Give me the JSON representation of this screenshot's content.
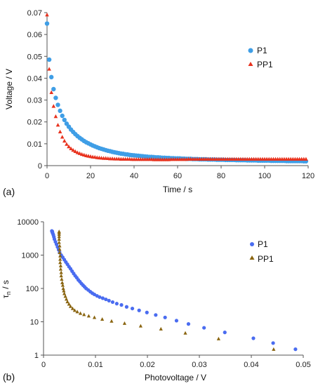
{
  "chart_data": [
    {
      "type": "scatter",
      "panel_label": "(a)",
      "xlabel": "Time / s",
      "ylabel": "Voltage / V",
      "xlim": [
        0,
        120
      ],
      "ylim": [
        0,
        0.07
      ],
      "xticks": [
        "0",
        "20",
        "40",
        "60",
        "80",
        "100",
        "120"
      ],
      "yticks": [
        "0",
        "0.01",
        "0.02",
        "0.03",
        "0.04",
        "0.05",
        "0.06",
        "0.07"
      ],
      "legend_position": "right",
      "series": [
        {
          "name": "P1",
          "marker": "circle",
          "color": "#3f9ee6",
          "x": [
            0,
            1,
            2,
            3,
            4,
            5,
            6,
            7,
            8,
            9,
            10,
            11,
            12,
            13,
            14,
            15,
            16,
            17,
            18,
            19,
            20,
            21,
            22,
            23,
            24,
            25,
            26,
            27,
            28,
            29,
            30,
            31,
            32,
            33,
            34,
            35,
            36,
            37,
            38,
            39,
            40,
            41,
            42,
            43,
            44,
            45,
            46,
            47,
            48,
            49,
            50,
            51,
            52,
            53,
            54,
            55,
            56,
            57,
            58,
            59,
            60,
            61,
            62,
            63,
            64,
            65,
            66,
            67,
            68,
            69,
            70,
            71,
            72,
            73,
            74,
            75,
            76,
            77,
            78,
            79,
            80,
            81,
            82,
            83,
            84,
            85,
            86,
            87,
            88,
            89,
            90,
            91,
            92,
            93,
            94,
            95,
            96,
            97,
            98,
            99,
            100,
            101,
            102,
            103,
            104,
            105,
            106,
            107,
            108,
            109,
            110,
            111,
            112,
            113,
            114,
            115,
            116,
            117,
            118,
            119
          ],
          "y": [
            0.065,
            0.0485,
            0.0405,
            0.035,
            0.031,
            0.0278,
            0.0251,
            0.0228,
            0.0209,
            0.0192,
            0.0178,
            0.0165,
            0.0154,
            0.0144,
            0.0135,
            0.0127,
            0.012,
            0.0113,
            0.0107,
            0.0102,
            0.0097,
            0.0092,
            0.0088,
            0.0084,
            0.008,
            0.0077,
            0.0074,
            0.0071,
            0.0068,
            0.0066,
            0.0063,
            0.0061,
            0.0059,
            0.0057,
            0.0055,
            0.0054,
            0.0052,
            0.0051,
            0.0049,
            0.0048,
            0.0047,
            0.0046,
            0.0045,
            0.0044,
            0.0043,
            0.0042,
            0.0041,
            0.004,
            0.004,
            0.0039,
            0.0038,
            0.0038,
            0.0037,
            0.0036,
            0.0036,
            0.0035,
            0.0035,
            0.0034,
            0.0034,
            0.0033,
            0.0033,
            0.0033,
            0.0032,
            0.0032,
            0.0031,
            0.0031,
            0.0031,
            0.003,
            0.003,
            0.003,
            0.0029,
            0.0029,
            0.0029,
            0.0029,
            0.0028,
            0.0028,
            0.0028,
            0.0028,
            0.0027,
            0.0027,
            0.0027,
            0.0027,
            0.0026,
            0.0026,
            0.0026,
            0.0026,
            0.0026,
            0.0025,
            0.0025,
            0.0025,
            0.0025,
            0.0025,
            0.0024,
            0.0024,
            0.0024,
            0.0024,
            0.0024,
            0.0023,
            0.0023,
            0.0023,
            0.0023,
            0.0023,
            0.0023,
            0.0022,
            0.0022,
            0.0022,
            0.0022,
            0.0022,
            0.0022,
            0.0022,
            0.0021,
            0.0021,
            0.0021,
            0.0021,
            0.0021,
            0.0021,
            0.0021,
            0.0021,
            0.002,
            0.002
          ]
        },
        {
          "name": "PP1",
          "marker": "triangle",
          "color": "#e8321e",
          "x": [
            0,
            1,
            2,
            3,
            4,
            5,
            6,
            7,
            8,
            9,
            10,
            11,
            12,
            13,
            14,
            15,
            16,
            17,
            18,
            19,
            20,
            21,
            22,
            23,
            24,
            25,
            26,
            27,
            28,
            29,
            30,
            31,
            32,
            33,
            34,
            35,
            36,
            37,
            38,
            39,
            40,
            41,
            42,
            43,
            44,
            45,
            46,
            47,
            48,
            49,
            50,
            51,
            52,
            53,
            54,
            55,
            56,
            57,
            58,
            59,
            60,
            61,
            62,
            63,
            64,
            65,
            66,
            67,
            68,
            69,
            70,
            71,
            72,
            73,
            74,
            75,
            76,
            77,
            78,
            79,
            80,
            81,
            82,
            83,
            84,
            85,
            86,
            87,
            88,
            89,
            90,
            91,
            92,
            93,
            94,
            95,
            96,
            97,
            98,
            99,
            100,
            101,
            102,
            103,
            104,
            105,
            106,
            107,
            108,
            109,
            110,
            111,
            112,
            113,
            114,
            115,
            116,
            117,
            118,
            119
          ],
          "y": [
            0.069,
            0.0442,
            0.0335,
            0.0272,
            0.0225,
            0.0186,
            0.0155,
            0.0131,
            0.0113,
            0.0098,
            0.0087,
            0.0078,
            0.0071,
            0.0065,
            0.006,
            0.0056,
            0.0052,
            0.0049,
            0.0046,
            0.0044,
            0.0042,
            0.004,
            0.0039,
            0.0037,
            0.0036,
            0.0035,
            0.0034,
            0.0034,
            0.0033,
            0.0032,
            0.0032,
            0.0031,
            0.0031,
            0.0031,
            0.003,
            0.003,
            0.003,
            0.003,
            0.003,
            0.0029,
            0.0029,
            0.0029,
            0.0029,
            0.0029,
            0.0029,
            0.0029,
            0.0029,
            0.0029,
            0.0029,
            0.0028,
            0.0028,
            0.0028,
            0.0028,
            0.0028,
            0.0028,
            0.0028,
            0.0028,
            0.0029,
            0.0029,
            0.0029,
            0.0029,
            0.0029,
            0.0029,
            0.0029,
            0.0029,
            0.003,
            0.003,
            0.003,
            0.003,
            0.003,
            0.003,
            0.003,
            0.003,
            0.003,
            0.003,
            0.003,
            0.003,
            0.003,
            0.003,
            0.003,
            0.003,
            0.003,
            0.003,
            0.003,
            0.003,
            0.003,
            0.003,
            0.003,
            0.003,
            0.003,
            0.003,
            0.003,
            0.003,
            0.003,
            0.003,
            0.003,
            0.003,
            0.003,
            0.003,
            0.003,
            0.003,
            0.003,
            0.003,
            0.003,
            0.003,
            0.003,
            0.003,
            0.003,
            0.003,
            0.003,
            0.003,
            0.003,
            0.003,
            0.003,
            0.003,
            0.003,
            0.003,
            0.003,
            0.003,
            0.003
          ]
        }
      ]
    },
    {
      "type": "scatter",
      "panel_label": "(b)",
      "xlabel": "Photovoltage / V",
      "ylabel": "τn / s",
      "ylabel_main": "τ",
      "ylabel_sub": "n",
      "ylabel_tail": " / s",
      "xlim": [
        0,
        0.05
      ],
      "ylim": [
        1,
        10000
      ],
      "yscale": "log",
      "xticks": [
        "0",
        "0.01",
        "0.02",
        "0.03",
        "0.04",
        "0.05"
      ],
      "yticks": [
        "1",
        "10",
        "100",
        "1000",
        "10000"
      ],
      "legend_position": "right",
      "series": [
        {
          "name": "P1",
          "marker": "circle",
          "color": "#4a6cf0",
          "x": [
            0.0485,
            0.0442,
            0.0404,
            0.0349,
            0.0309,
            0.0279,
            0.0256,
            0.0234,
            0.0216,
            0.0199,
            0.0184,
            0.0171,
            0.016,
            0.015,
            0.0141,
            0.0133,
            0.0126,
            0.012,
            0.0114,
            0.0108,
            0.0103,
            0.0098,
            0.0094,
            0.009,
            0.0086,
            0.0082,
            0.0079,
            0.0076,
            0.0073,
            0.007,
            0.0067,
            0.0064,
            0.0061,
            0.0058,
            0.0055,
            0.0052,
            0.0049,
            0.0046,
            0.0043,
            0.004,
            0.0037,
            0.0034,
            0.0031,
            0.0029,
            0.0027,
            0.0025,
            0.0023,
            0.0021,
            0.002,
            0.0019,
            0.0018,
            0.0017,
            0.0017,
            0.0016
          ],
          "y": [
            1.5,
            2.3,
            3.2,
            4.8,
            6.6,
            8.6,
            10.8,
            13.5,
            16,
            19,
            22,
            25,
            28,
            32,
            35,
            39,
            43,
            47,
            51,
            55,
            60,
            66,
            72,
            80,
            90,
            100,
            112,
            125,
            140,
            160,
            180,
            210,
            240,
            280,
            330,
            390,
            450,
            530,
            620,
            730,
            860,
            1000,
            1200,
            1450,
            1750,
            2100,
            2500,
            3000,
            3500,
            4000,
            4400,
            4800,
            5100,
            5300
          ]
        },
        {
          "name": "PP1",
          "marker": "triangle",
          "color": "#8a6510",
          "x": [
            0.0443,
            0.0337,
            0.0273,
            0.0226,
            0.0187,
            0.0156,
            0.0131,
            0.0113,
            0.0098,
            0.0087,
            0.0078,
            0.0071,
            0.0065,
            0.006,
            0.0056,
            0.0052,
            0.0049,
            0.0046,
            0.0044,
            0.0042,
            0.004,
            0.0039,
            0.0038,
            0.0037,
            0.0036,
            0.0035,
            0.0034,
            0.0034,
            0.0033,
            0.0033,
            0.0032,
            0.0032,
            0.0032,
            0.0031,
            0.0031,
            0.0031,
            0.003,
            0.003,
            0.003,
            0.003,
            0.003,
            0.003
          ],
          "y": [
            1.5,
            3.1,
            4.6,
            6.1,
            7.5,
            9,
            10.5,
            12,
            13.5,
            15,
            16.5,
            18,
            20,
            22,
            25,
            29,
            34,
            40,
            48,
            58,
            70,
            85,
            100,
            125,
            150,
            190,
            240,
            300,
            380,
            480,
            600,
            750,
            950,
            1200,
            1500,
            1900,
            2400,
            3000,
            3600,
            4200,
            4700,
            5100
          ]
        }
      ]
    }
  ]
}
